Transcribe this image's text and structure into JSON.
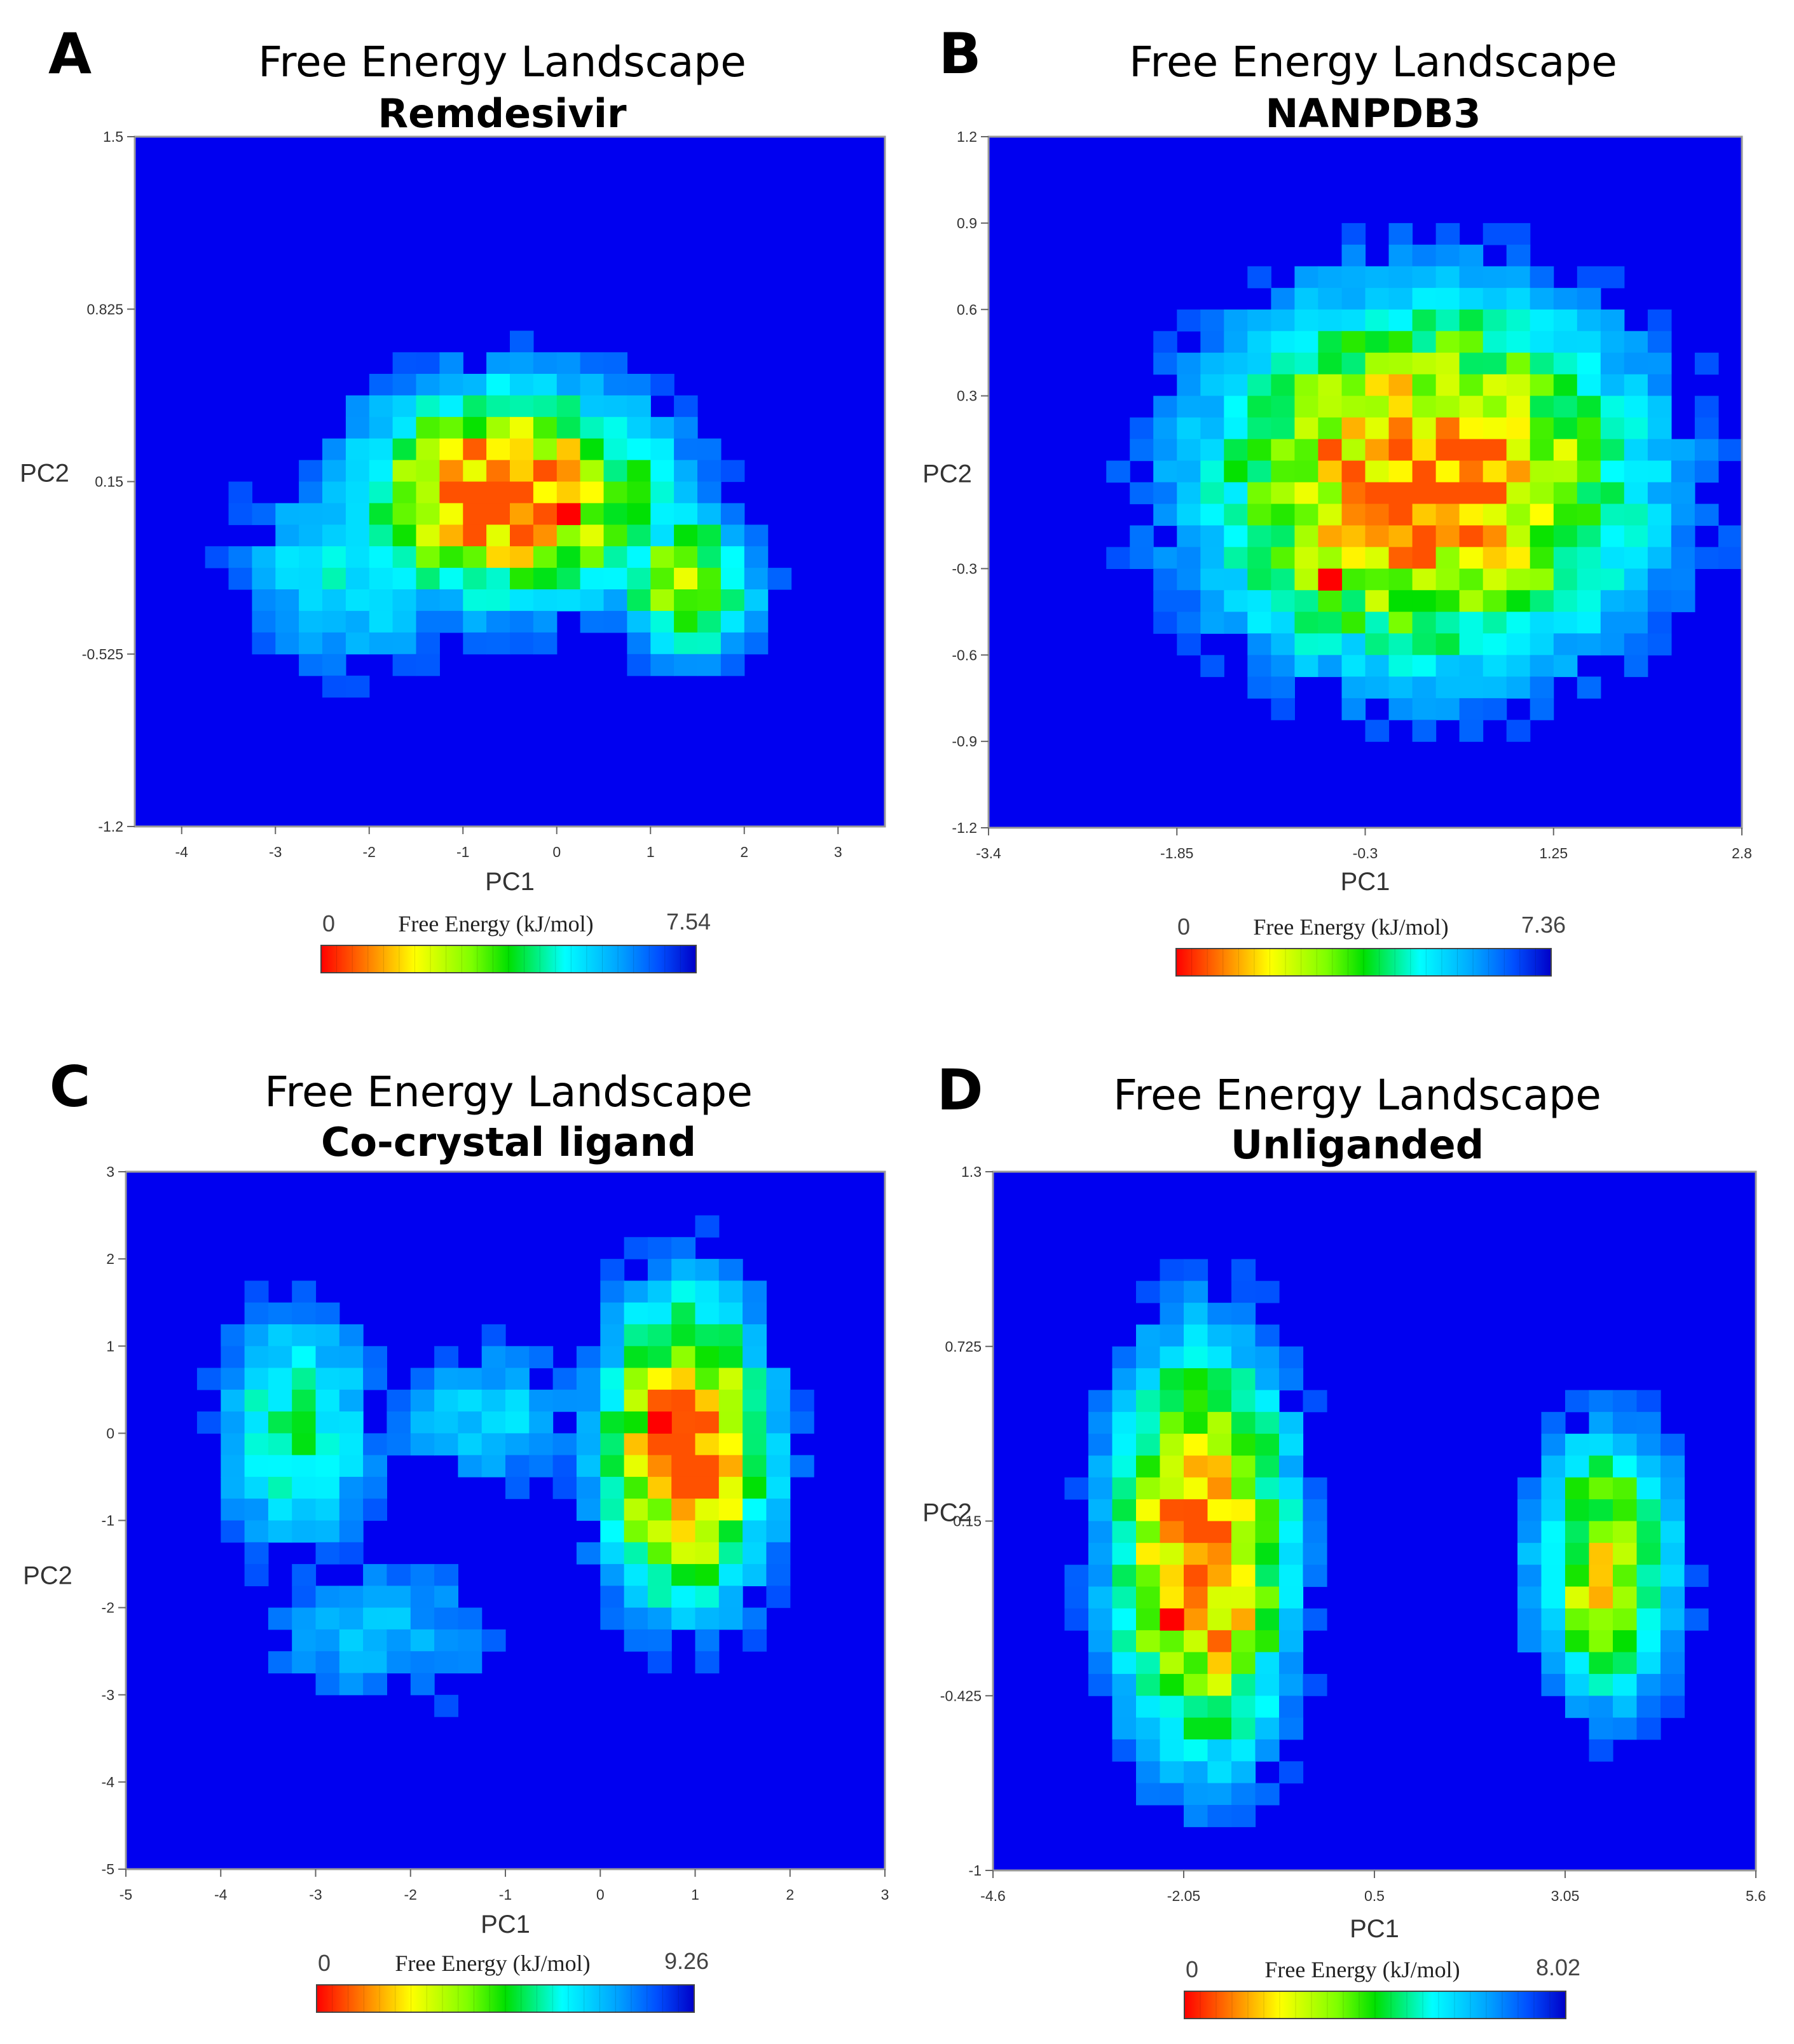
{
  "chart_data": [
    {
      "panel": "A",
      "type": "heatmap",
      "title": "Free Energy Landscape",
      "subtitle": "Remdesivir",
      "xlabel": "PC1",
      "ylabel": "PC2",
      "xticks": [
        "-4",
        "-3",
        "-2",
        "-1",
        "0",
        "1",
        "2",
        "3"
      ],
      "yticks": [
        "1.5",
        "0.825",
        "0.15",
        "-0.525",
        "-1.2"
      ],
      "xlim": [
        -4.5,
        3.5
      ],
      "ylim": [
        -1.2,
        1.5
      ],
      "colorbar": {
        "label": "Free Energy (kJ/mol)",
        "min": "0",
        "max": "7.54"
      },
      "minimum": [
        0.0,
        0.05
      ],
      "clusters": [
        {
          "center": [
            -0.5,
            0.1
          ],
          "spread": [
            1.1,
            0.28
          ],
          "depth": 1.0
        },
        {
          "center": [
            1.4,
            -0.25
          ],
          "spread": [
            0.5,
            0.2
          ],
          "depth": 0.7
        },
        {
          "center": [
            -2.2,
            -0.2
          ],
          "spread": [
            0.9,
            0.3
          ],
          "depth": 0.35
        }
      ]
    },
    {
      "panel": "B",
      "type": "heatmap",
      "title": "Free Energy Landscape",
      "subtitle": "NANPDB3",
      "xlabel": "PC1",
      "ylabel": "PC2",
      "xticks": [
        "-3.4",
        "-1.85",
        "-0.3",
        "1.25",
        "2.8"
      ],
      "yticks": [
        "1.2",
        "0.9",
        "0.6",
        "0.3",
        "-0.3",
        "-0.6",
        "-0.9",
        "-1.2"
      ],
      "xlim": [
        -3.4,
        2.8
      ],
      "ylim": [
        -1.2,
        1.2
      ],
      "colorbar": {
        "label": "Free Energy (kJ/mol)",
        "min": "0",
        "max": "7.36"
      },
      "minimum": [
        -0.5,
        -0.3
      ],
      "clusters": [
        {
          "center": [
            0.2,
            0.0
          ],
          "spread": [
            1.2,
            0.42
          ],
          "depth": 1.0
        },
        {
          "center": [
            -0.6,
            -0.3
          ],
          "spread": [
            0.6,
            0.25
          ],
          "depth": 0.6
        }
      ]
    },
    {
      "panel": "C",
      "type": "heatmap",
      "title": "Free Energy Landscape",
      "subtitle": "Co-crystal ligand",
      "xlabel": "PC1",
      "ylabel": "PC2",
      "xticks": [
        "-5",
        "-4",
        "-3",
        "-2",
        "-1",
        "0",
        "1",
        "2",
        "3"
      ],
      "yticks": [
        "3",
        "2",
        "1",
        "0",
        "-1",
        "-2",
        "-3",
        "-4",
        "-5"
      ],
      "xlim": [
        -5,
        3
      ],
      "ylim": [
        -5,
        3
      ],
      "colorbar": {
        "label": "Free Energy (kJ/mol)",
        "min": "0",
        "max": "9.26"
      },
      "minimum": [
        0.7,
        0.2
      ],
      "clusters": [
        {
          "center": [
            0.9,
            -0.2
          ],
          "spread": [
            0.6,
            1.2
          ],
          "depth": 1.0
        },
        {
          "center": [
            -3.2,
            0.0
          ],
          "spread": [
            0.6,
            1.0
          ],
          "depth": 0.45
        },
        {
          "center": [
            -1.2,
            0.2
          ],
          "spread": [
            0.8,
            0.6
          ],
          "depth": 0.3
        },
        {
          "center": [
            -2.3,
            -2.3
          ],
          "spread": [
            1.0,
            0.7
          ],
          "depth": 0.25
        }
      ]
    },
    {
      "panel": "D",
      "type": "heatmap",
      "title": "Free Energy Landscape",
      "subtitle": "Unliganded",
      "xlabel": "PC1",
      "ylabel": "PC2",
      "xticks": [
        "-4.6",
        "-2.05",
        "0.5",
        "3.05",
        "5.6"
      ],
      "yticks": [
        "1.3",
        "0.725",
        "0.15",
        "-0.425",
        "-1"
      ],
      "xlim": [
        -4.6,
        5.6
      ],
      "ylim": [
        -1,
        1.3
      ],
      "colorbar": {
        "label": "Free Energy (kJ/mol)",
        "min": "0",
        "max": "8.02"
      },
      "minimum": [
        -2.2,
        -0.2
      ],
      "clusters": [
        {
          "center": [
            -1.8,
            0.05
          ],
          "spread": [
            0.8,
            0.45
          ],
          "depth": 1.0
        },
        {
          "center": [
            3.6,
            0.0
          ],
          "spread": [
            0.65,
            0.3
          ],
          "depth": 0.75
        }
      ]
    }
  ]
}
